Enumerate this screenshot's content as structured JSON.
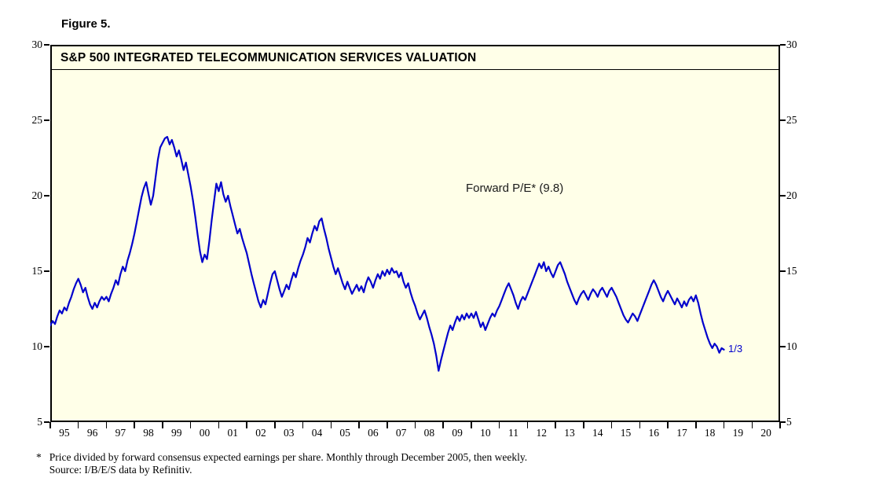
{
  "figure_label": "Figure 5.",
  "chart_data": {
    "type": "line",
    "title": "S&P 500 INTEGRATED TELECOMMUNICATION SERVICES VALUATION",
    "annotation": "Forward P/E* (9.8)",
    "end_label": "1/3",
    "latest_value": 9.8,
    "x_start_year": 1995,
    "points_per_year": 12,
    "x_range": [
      1995,
      2021
    ],
    "ylim": [
      5,
      30
    ],
    "y_ticks": [
      5,
      10,
      15,
      20,
      25,
      30
    ],
    "x_axis_labels": [
      "95",
      "96",
      "97",
      "98",
      "99",
      "00",
      "01",
      "02",
      "03",
      "04",
      "05",
      "06",
      "07",
      "08",
      "09",
      "10",
      "11",
      "12",
      "13",
      "14",
      "15",
      "16",
      "17",
      "18",
      "19",
      "20"
    ],
    "grid": false,
    "series": [
      {
        "name": "Forward P/E",
        "color": "#0000CC",
        "values": [
          11.4,
          11.7,
          11.5,
          12.0,
          12.4,
          12.2,
          12.6,
          12.4,
          12.9,
          13.3,
          13.8,
          14.2,
          14.5,
          14.1,
          13.6,
          13.9,
          13.3,
          12.8,
          12.5,
          12.9,
          12.6,
          13.0,
          13.3,
          13.1,
          13.3,
          13.0,
          13.5,
          13.9,
          14.4,
          14.1,
          14.8,
          15.3,
          15.0,
          15.7,
          16.2,
          16.8,
          17.5,
          18.3,
          19.1,
          19.9,
          20.5,
          20.9,
          20.1,
          19.4,
          20.0,
          21.2,
          22.4,
          23.2,
          23.5,
          23.8,
          23.9,
          23.4,
          23.7,
          23.2,
          22.6,
          23.0,
          22.4,
          21.7,
          22.2,
          21.4,
          20.6,
          19.7,
          18.6,
          17.4,
          16.3,
          15.6,
          16.1,
          15.8,
          17.0,
          18.4,
          19.6,
          20.8,
          20.3,
          20.9,
          20.1,
          19.6,
          20.0,
          19.3,
          18.7,
          18.1,
          17.5,
          17.8,
          17.2,
          16.7,
          16.2,
          15.5,
          14.8,
          14.2,
          13.6,
          13.0,
          12.6,
          13.1,
          12.8,
          13.5,
          14.2,
          14.8,
          15.0,
          14.4,
          13.8,
          13.3,
          13.7,
          14.1,
          13.8,
          14.4,
          14.9,
          14.6,
          15.2,
          15.7,
          16.1,
          16.6,
          17.2,
          16.9,
          17.5,
          18.0,
          17.7,
          18.3,
          18.5,
          17.8,
          17.2,
          16.5,
          15.9,
          15.3,
          14.8,
          15.2,
          14.7,
          14.2,
          13.8,
          14.3,
          13.9,
          13.5,
          13.8,
          14.1,
          13.7,
          14.0,
          13.6,
          14.2,
          14.6,
          14.3,
          13.9,
          14.4,
          14.8,
          14.5,
          15.0,
          14.7,
          15.1,
          14.8,
          15.2,
          14.9,
          15.0,
          14.6,
          14.9,
          14.3,
          13.9,
          14.2,
          13.6,
          13.1,
          12.7,
          12.2,
          11.8,
          12.1,
          12.4,
          11.9,
          11.3,
          10.8,
          10.2,
          9.4,
          8.4,
          9.1,
          9.7,
          10.3,
          10.9,
          11.4,
          11.1,
          11.6,
          12.0,
          11.7,
          12.1,
          11.8,
          12.2,
          11.9,
          12.2,
          11.9,
          12.3,
          11.8,
          11.3,
          11.6,
          11.1,
          11.5,
          11.9,
          12.2,
          12.0,
          12.4,
          12.7,
          13.1,
          13.5,
          13.9,
          14.2,
          13.8,
          13.4,
          12.9,
          12.5,
          13.0,
          13.3,
          13.1,
          13.5,
          13.9,
          14.3,
          14.7,
          15.1,
          15.5,
          15.2,
          15.6,
          15.0,
          15.3,
          14.9,
          14.6,
          15.0,
          15.4,
          15.6,
          15.2,
          14.8,
          14.3,
          13.9,
          13.5,
          13.1,
          12.8,
          13.2,
          13.5,
          13.7,
          13.4,
          13.1,
          13.5,
          13.8,
          13.6,
          13.3,
          13.7,
          13.9,
          13.6,
          13.3,
          13.7,
          13.9,
          13.6,
          13.3,
          12.9,
          12.5,
          12.1,
          11.8,
          11.6,
          11.9,
          12.2,
          12.0,
          11.7,
          12.1,
          12.5,
          12.9,
          13.3,
          13.7,
          14.1,
          14.4,
          14.1,
          13.7,
          13.3,
          13.0,
          13.4,
          13.7,
          13.4,
          13.1,
          12.8,
          13.2,
          12.9,
          12.6,
          13.0,
          12.7,
          13.1,
          13.3,
          13.0,
          13.4,
          12.9,
          12.2,
          11.6,
          11.1,
          10.6,
          10.2,
          9.9,
          10.2,
          10.0,
          9.6,
          9.9,
          9.8
        ]
      }
    ]
  },
  "footnote": {
    "asterisk": "*",
    "line1": "Price divided by forward consensus expected earnings per share. Monthly through December 2005, then weekly.",
    "line2": "Source: I/B/E/S data by Refinitiv."
  },
  "colors": {
    "plot_bg": "#FFFFE8",
    "line": "#0000CC",
    "axis": "#000000"
  }
}
